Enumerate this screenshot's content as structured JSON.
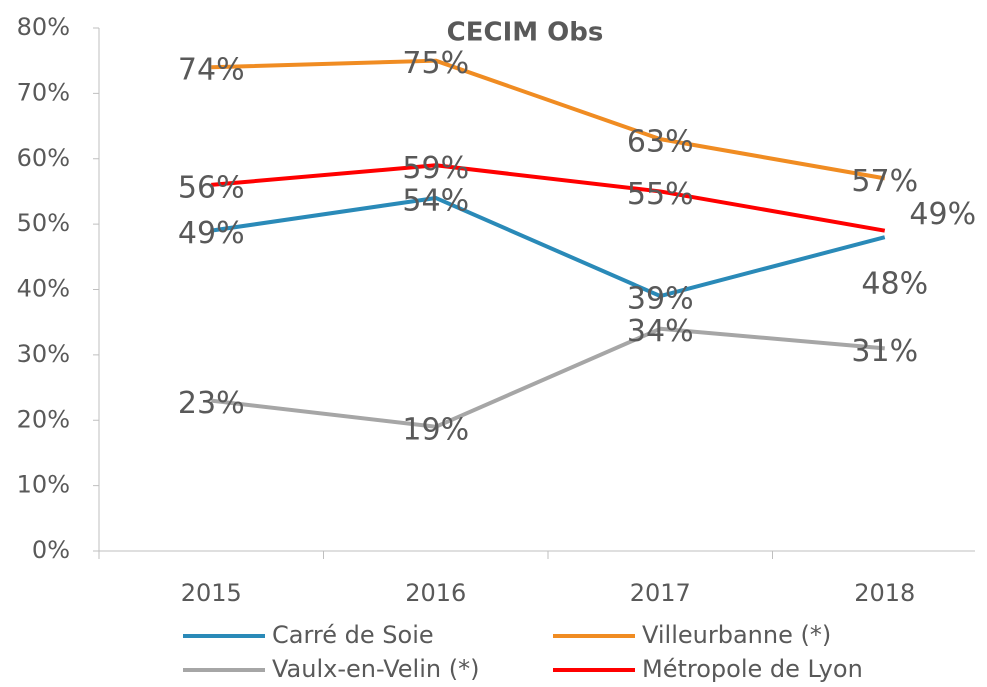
{
  "chart_data": {
    "type": "line",
    "title": "CECIM Obs",
    "categories": [
      "2015",
      "2016",
      "2017",
      "2018"
    ],
    "series": [
      {
        "name": "Carré de Soie",
        "color": "#2a8ab8",
        "values": [
          49,
          54,
          39,
          48
        ],
        "value_labels": [
          "49%",
          "54%",
          "39%",
          "48%"
        ]
      },
      {
        "name": "Villeurbanne (*)",
        "color": "#f08c22",
        "values": [
          74,
          75,
          63,
          57
        ],
        "value_labels": [
          "74%",
          "75%",
          "63%",
          "57%"
        ]
      },
      {
        "name": "Vaulx-en-Velin (*)",
        "color": "#a6a6a6",
        "values": [
          23,
          19,
          34,
          31
        ],
        "value_labels": [
          "23%",
          "19%",
          "34%",
          "31%"
        ]
      },
      {
        "name": "Métropole de Lyon",
        "color": "#ff0000",
        "values": [
          56,
          59,
          55,
          49
        ],
        "value_labels": [
          "56%",
          "59%",
          "55%",
          "49%"
        ]
      }
    ],
    "ylim": [
      0,
      80
    ],
    "yticks": [
      {
        "value": 0,
        "label": "0%"
      },
      {
        "value": 10,
        "label": "10%"
      },
      {
        "value": 20,
        "label": "20%"
      },
      {
        "value": 30,
        "label": "30%"
      },
      {
        "value": 40,
        "label": "40%"
      },
      {
        "value": 50,
        "label": "50%"
      },
      {
        "value": 60,
        "label": "60%"
      },
      {
        "value": 70,
        "label": "70%"
      },
      {
        "value": 80,
        "label": "80%"
      }
    ],
    "legend": "bottom"
  }
}
